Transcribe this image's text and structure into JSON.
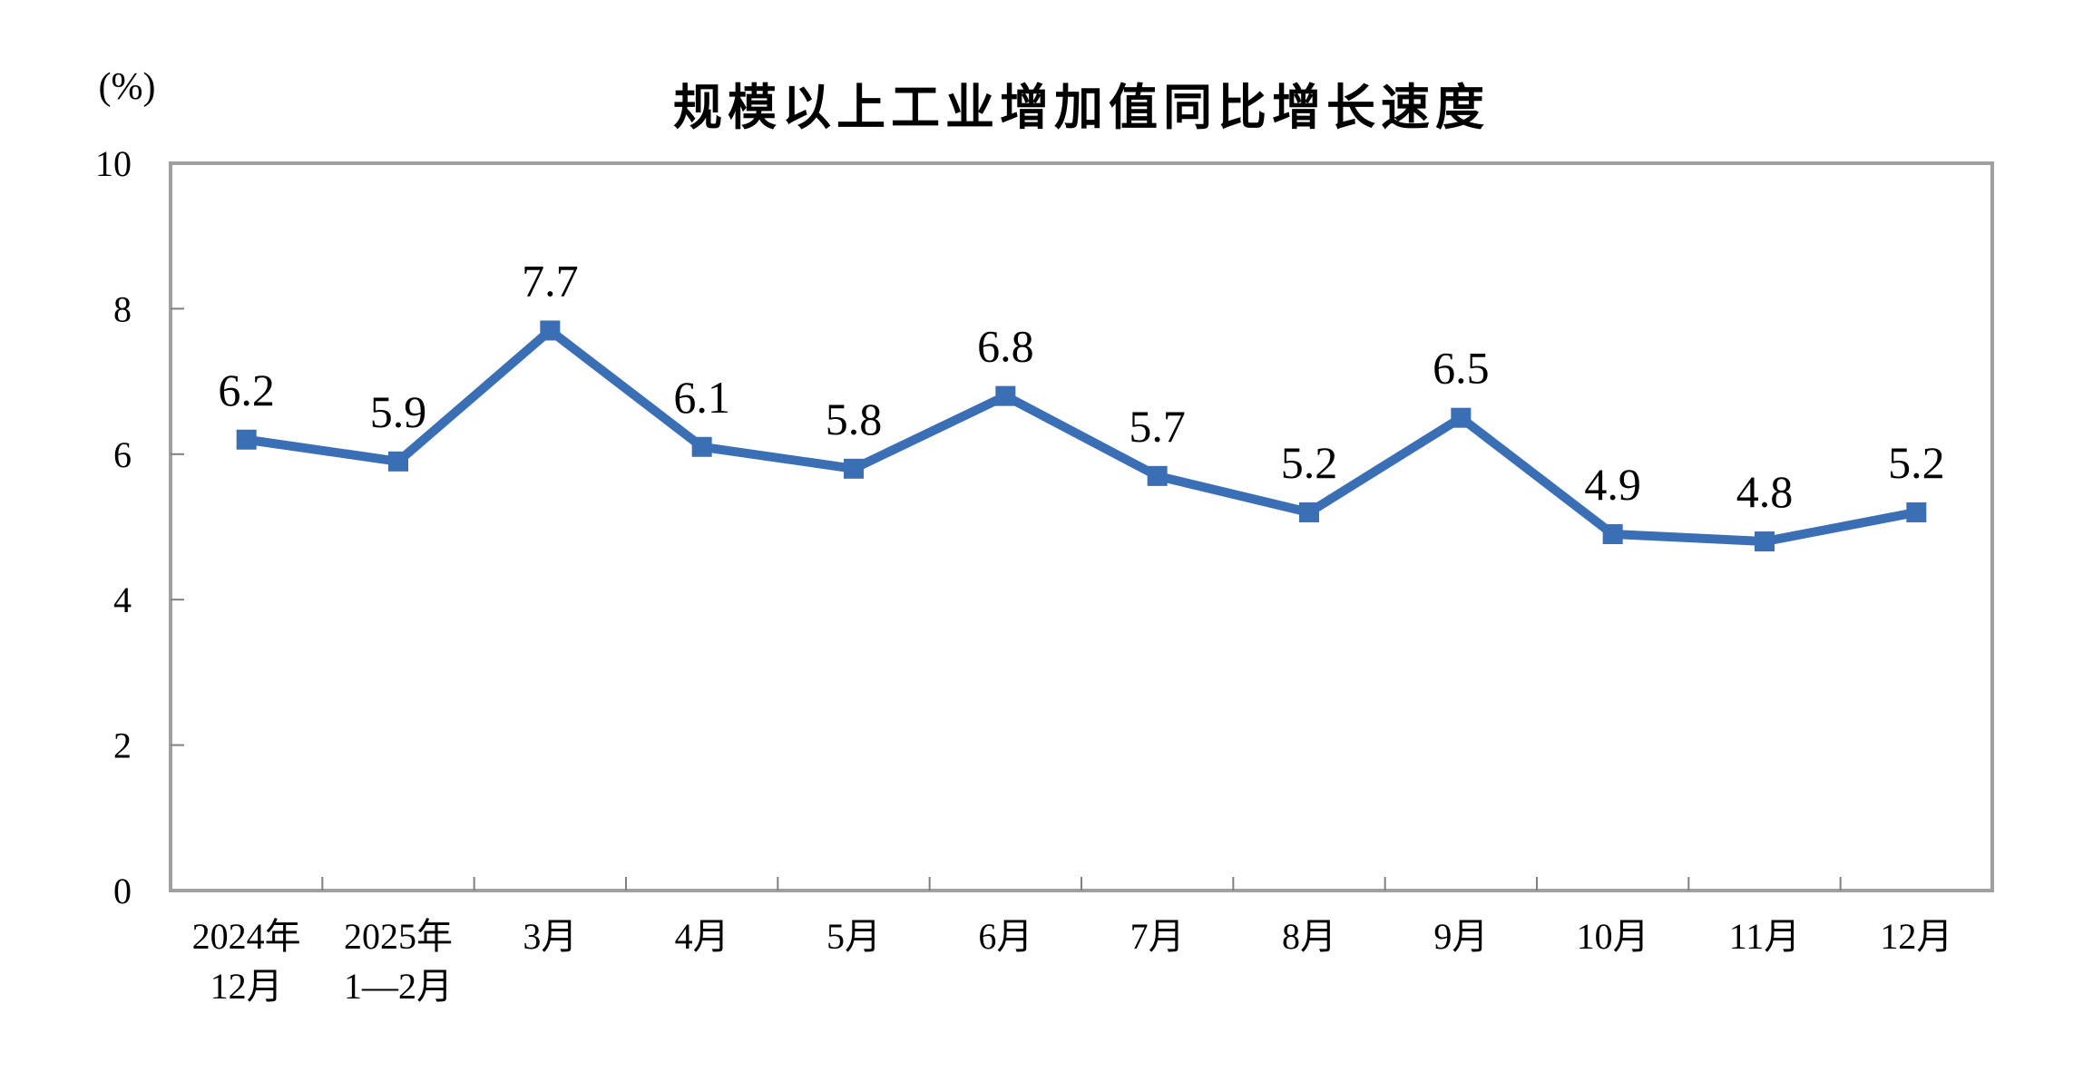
{
  "header": {
    "title": "规模以上工业增加值同比增长速度",
    "unit_label": "(%)"
  },
  "chart_data": {
    "type": "line",
    "title": "规模以上工业增加值同比增长速度",
    "ylabel": "(%)",
    "xlabel": "",
    "categories": [
      "2024年\n12月",
      "2025年\n1—2月",
      "3月",
      "4月",
      "5月",
      "6月",
      "7月",
      "8月",
      "9月",
      "10月",
      "11月",
      "12月"
    ],
    "series": [
      {
        "name": "规模以上工业增加值同比增长速度",
        "values": [
          6.2,
          5.9,
          7.7,
          6.1,
          5.8,
          6.8,
          5.7,
          5.2,
          6.5,
          4.9,
          4.8,
          5.2
        ]
      }
    ],
    "data_labels": [
      "6.2",
      "5.9",
      "7.7",
      "6.1",
      "5.8",
      "6.8",
      "5.7",
      "5.2",
      "6.5",
      "4.9",
      "4.8",
      "5.2"
    ],
    "ylim": [
      0,
      10
    ],
    "yticks": [
      0,
      2,
      4,
      6,
      8,
      10
    ],
    "grid": false,
    "legend_position": "none",
    "marker": "square",
    "colors": {
      "series": "#3A6FB5",
      "plot_border": "#A0A0A0",
      "tick": "#808080",
      "text": "#000000",
      "background": "#FFFFFF"
    }
  }
}
